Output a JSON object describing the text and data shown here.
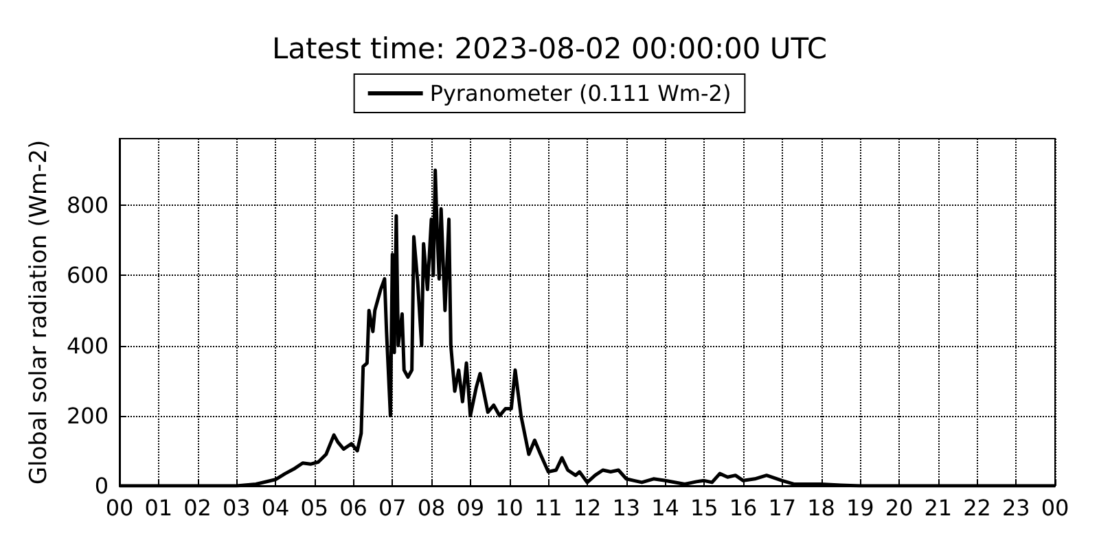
{
  "chart_data": {
    "type": "line",
    "title": "Latest time: 2023-08-02 00:00:00 UTC",
    "ylabel": "Global solar radiation (Wm-2)",
    "series": [
      {
        "name": "Pyranometer (0.111 Wm-2)",
        "color": "#000000",
        "x": [
          0,
          3,
          3.5,
          4,
          4.25,
          4.5,
          4.7,
          4.9,
          5.1,
          5.3,
          5.5,
          5.6,
          5.75,
          5.95,
          6.1,
          6.2,
          6.25,
          6.35,
          6.4,
          6.5,
          6.55,
          6.7,
          6.8,
          6.85,
          6.95,
          7,
          7.05,
          7.1,
          7.15,
          7.25,
          7.3,
          7.4,
          7.5,
          7.55,
          7.65,
          7.75,
          7.8,
          7.9,
          8,
          8.05,
          8.1,
          8.15,
          8.2,
          8.25,
          8.35,
          8.45,
          8.5,
          8.6,
          8.7,
          8.8,
          8.9,
          9,
          9.15,
          9.25,
          9.45,
          9.6,
          9.75,
          9.9,
          10.05,
          10.15,
          10.3,
          10.5,
          10.65,
          10.8,
          11,
          11.2,
          11.35,
          11.5,
          11.7,
          11.8,
          12,
          12.2,
          12.4,
          12.6,
          12.8,
          13,
          13.2,
          13.4,
          13.7,
          14,
          14.5,
          14.8,
          15,
          15.2,
          15.4,
          15.6,
          15.8,
          16,
          16.3,
          16.6,
          17,
          17.3,
          18,
          18.5,
          19,
          24
        ],
        "values": [
          0,
          0,
          5,
          18,
          35,
          50,
          65,
          62,
          68,
          90,
          145,
          125,
          105,
          120,
          100,
          150,
          340,
          350,
          500,
          440,
          500,
          560,
          590,
          440,
          200,
          660,
          380,
          770,
          400,
          490,
          330,
          310,
          330,
          710,
          580,
          400,
          690,
          560,
          760,
          600,
          900,
          720,
          590,
          790,
          500,
          760,
          400,
          270,
          330,
          240,
          350,
          200,
          280,
          320,
          210,
          230,
          200,
          220,
          220,
          330,
          200,
          90,
          130,
          90,
          40,
          45,
          80,
          45,
          30,
          40,
          10,
          30,
          45,
          40,
          45,
          20,
          15,
          10,
          20,
          15,
          5,
          12,
          15,
          10,
          35,
          25,
          30,
          15,
          20,
          30,
          15,
          5,
          5,
          2,
          0,
          0
        ]
      }
    ],
    "xlim": [
      0,
      24
    ],
    "xticks": [
      {
        "value": 0,
        "label": "00"
      },
      {
        "value": 1,
        "label": "01"
      },
      {
        "value": 2,
        "label": "02"
      },
      {
        "value": 3,
        "label": "03"
      },
      {
        "value": 4,
        "label": "04"
      },
      {
        "value": 5,
        "label": "05"
      },
      {
        "value": 6,
        "label": "06"
      },
      {
        "value": 7,
        "label": "07"
      },
      {
        "value": 8,
        "label": "08"
      },
      {
        "value": 9,
        "label": "09"
      },
      10,
      11,
      12,
      13,
      14,
      15,
      16,
      17,
      18,
      19,
      20,
      21,
      22,
      23,
      {
        "value": 24,
        "label": "00"
      }
    ],
    "ylim": [
      0,
      990
    ],
    "yticks": [
      0,
      200,
      400,
      600,
      800
    ],
    "grid": true,
    "legend": "top",
    "marker": "none",
    "line_style": "solid"
  }
}
